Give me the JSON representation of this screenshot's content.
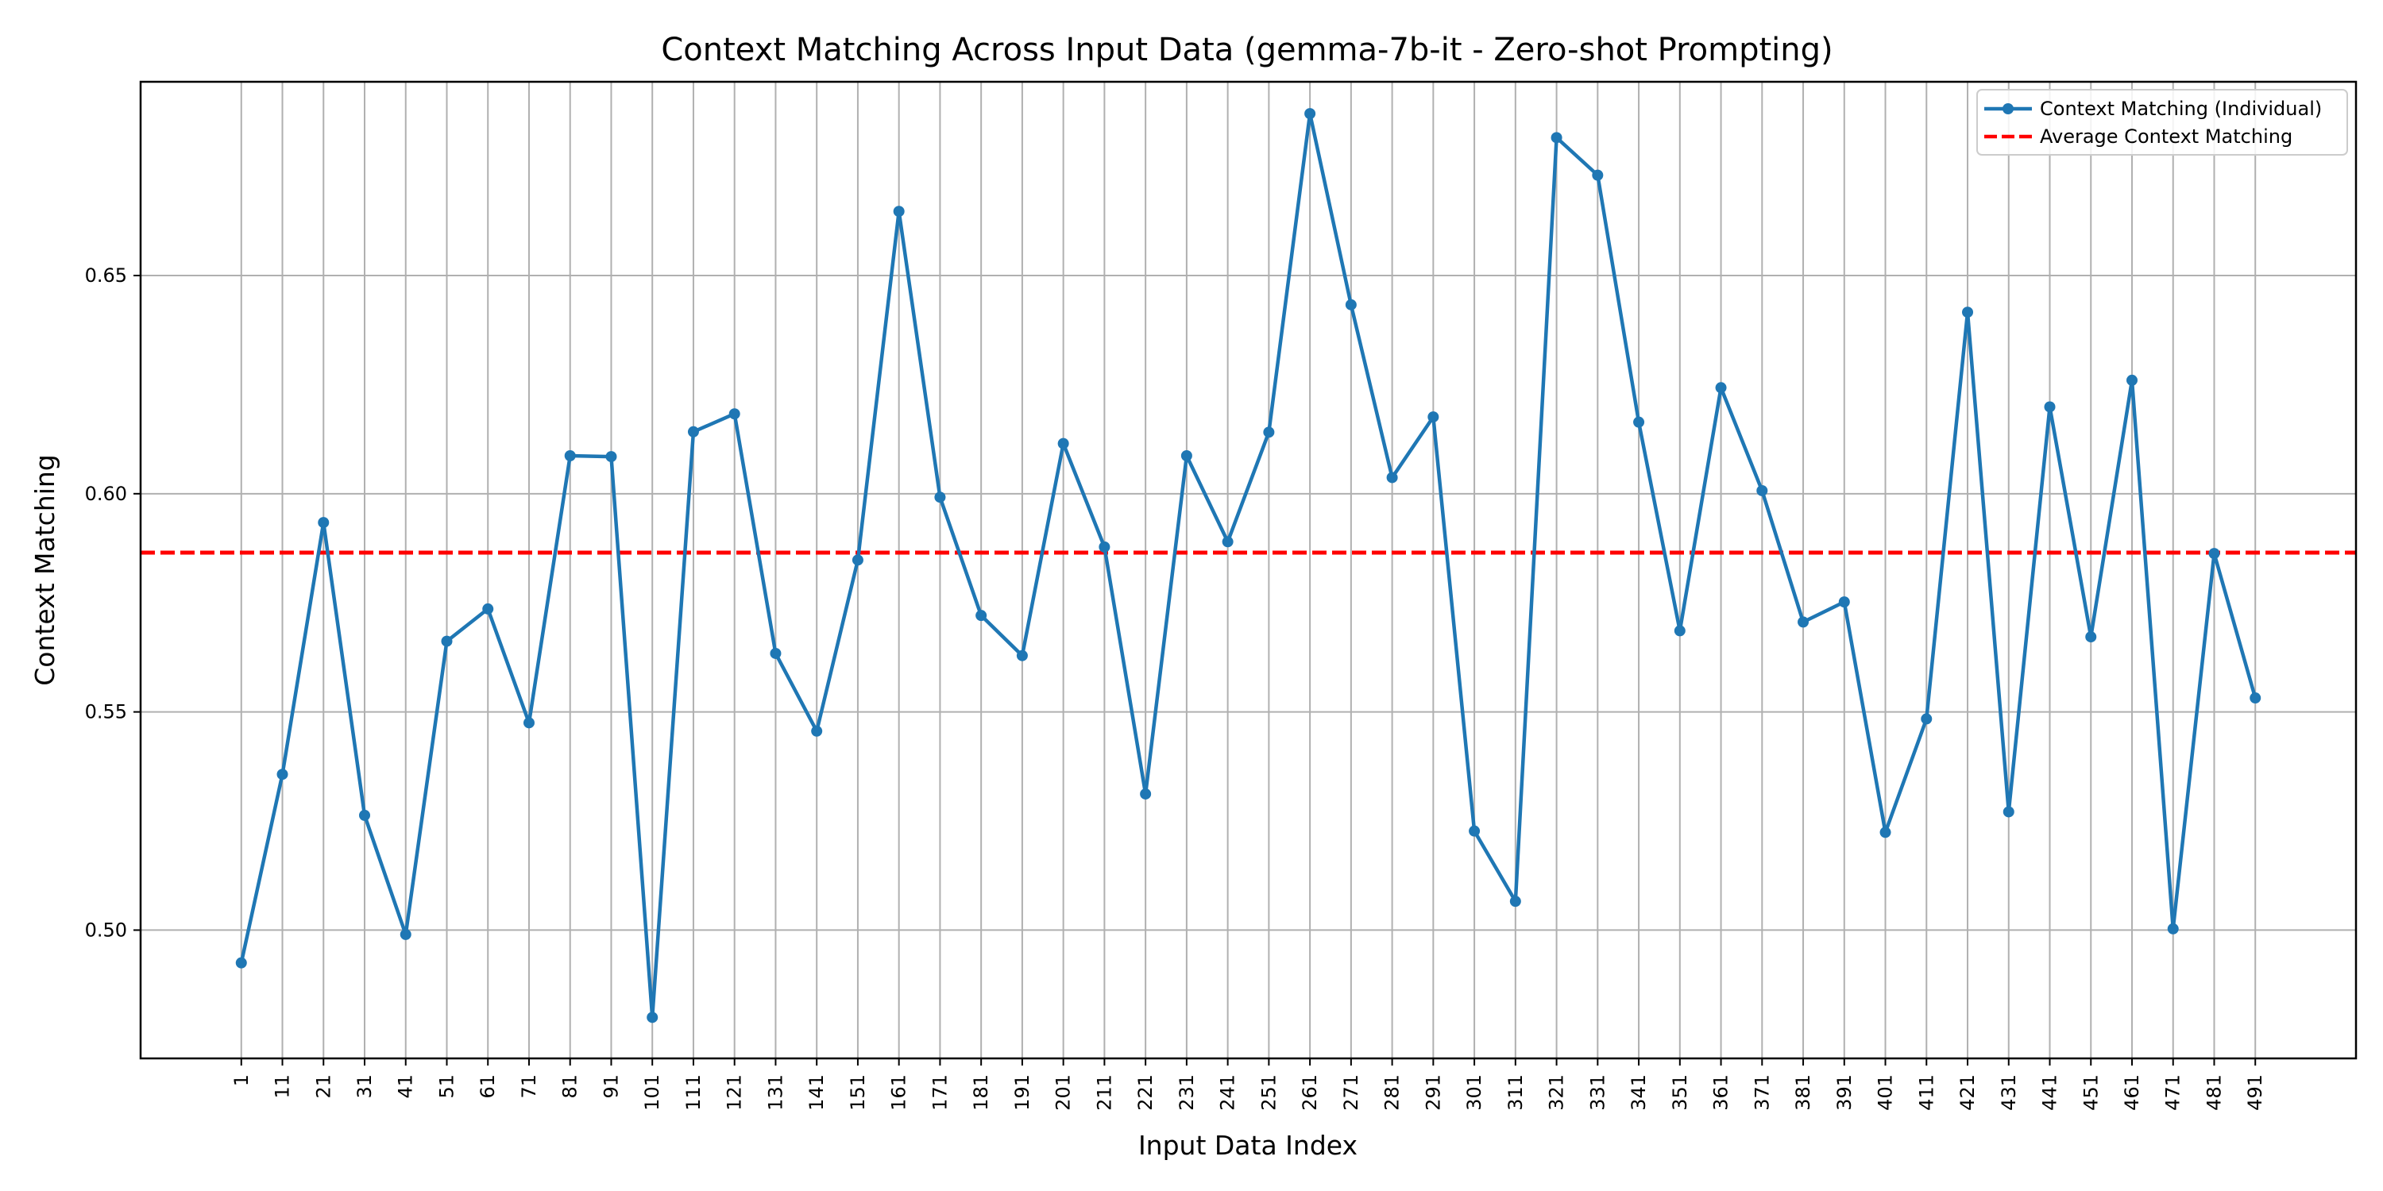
{
  "chart_data": {
    "type": "line",
    "title": "Context Matching Across Input Data (gemma-7b-it - Zero-shot Prompting)",
    "xlabel": "Input Data Index",
    "ylabel": "Context Matching",
    "x": [
      1,
      11,
      21,
      31,
      41,
      51,
      61,
      71,
      81,
      91,
      101,
      111,
      121,
      131,
      141,
      151,
      161,
      171,
      181,
      191,
      201,
      211,
      221,
      231,
      241,
      251,
      261,
      271,
      281,
      291,
      301,
      311,
      321,
      331,
      341,
      351,
      361,
      371,
      381,
      391,
      401,
      411,
      421,
      431,
      441,
      451,
      461,
      471,
      481,
      491
    ],
    "series": [
      {
        "name": "Context Matching (Individual)",
        "color": "#1f77b4",
        "values": [
          0.4925,
          0.5357,
          0.5934,
          0.5263,
          0.499,
          0.5662,
          0.5736,
          0.5475,
          0.6087,
          0.6085,
          0.48,
          0.6142,
          0.6183,
          0.5634,
          0.5456,
          0.5848,
          0.6647,
          0.5992,
          0.5721,
          0.5629,
          0.6115,
          0.5878,
          0.5312,
          0.6087,
          0.589,
          0.6141,
          0.6871,
          0.6433,
          0.6037,
          0.6176,
          0.5227,
          0.5066,
          0.6816,
          0.673,
          0.6164,
          0.5686,
          0.6243,
          0.6007,
          0.5706,
          0.5752,
          0.5224,
          0.5484,
          0.6416,
          0.5271,
          0.6199,
          0.5672,
          0.626,
          0.5003,
          0.5863,
          0.5532
        ]
      }
    ],
    "average": {
      "name": "Average Context Matching",
      "color": "#ff0000",
      "value": 0.5865
    },
    "xlim": [
      -23.5,
      515.5
    ],
    "ylim": [
      0.4706,
      0.6944
    ],
    "yticks": [
      0.5,
      0.55,
      0.6,
      0.65
    ],
    "ytick_labels": [
      "0.50",
      "0.55",
      "0.60",
      "0.65"
    ],
    "grid": true,
    "legend_position": "top-right"
  }
}
